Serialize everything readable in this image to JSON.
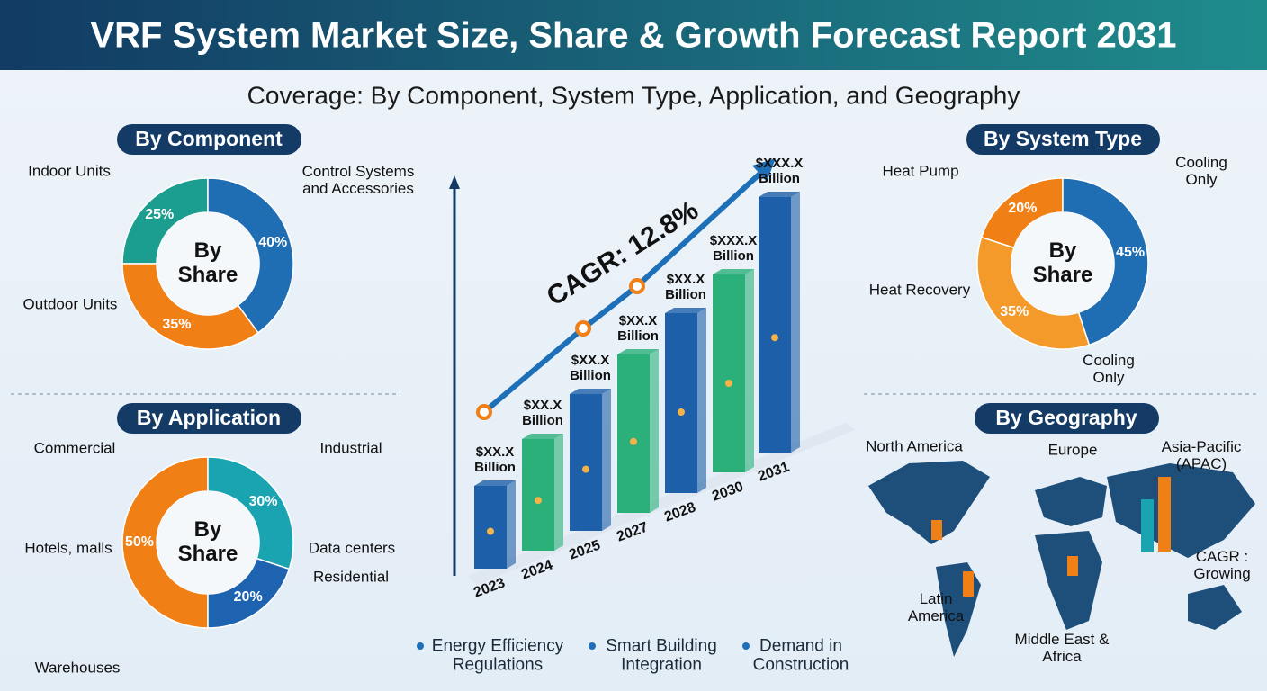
{
  "title": "VRF System Market Size, Share & Growth Forecast Report 2031",
  "subtitle": "Coverage: By Component, System Type, Application, and Geography",
  "chart_data": [
    {
      "type": "pie",
      "title": "By Component",
      "center_label": "By Share",
      "categories": [
        "Indoor Units",
        "Control Systems and Accessories",
        "Outdoor Units"
      ],
      "values": [
        25,
        40,
        35
      ],
      "value_labels": [
        "25%",
        "40%",
        "35%"
      ],
      "colors": [
        "#1b9e8f",
        "#1f6db3",
        "#f07f16"
      ]
    },
    {
      "type": "pie",
      "title": "By System Type",
      "center_label": "By Share",
      "categories": [
        "Heat Pump",
        "Cooling Only",
        "Heat Recovery"
      ],
      "values": [
        20,
        45,
        35
      ],
      "value_labels": [
        "20%",
        "45%",
        "35%"
      ],
      "colors": [
        "#f07f16",
        "#1f6db3",
        "#f39a2a"
      ],
      "annotation": "Cooling Only"
    },
    {
      "type": "pie",
      "title": "By Application",
      "center_label": "By Share",
      "categories": [
        "Commercial",
        "Industrial",
        "Residential"
      ],
      "values": [
        50,
        30,
        20
      ],
      "value_labels": [
        "50%",
        "30%",
        "20%"
      ],
      "colors": [
        "#f07f16",
        "#1aa3b0",
        "#1e63b0"
      ],
      "annotations": [
        "Hotels, malls",
        "Data centers",
        "Warehouses"
      ]
    },
    {
      "type": "bar",
      "categories": [
        "2023",
        "2024",
        "2025",
        "2027",
        "2028",
        "2030",
        "2031"
      ],
      "values": [
        11.5,
        15.5,
        19,
        22,
        25,
        27.5,
        35.5
      ],
      "value_labels": [
        "$XX.X Billion",
        "$XX.X Billion",
        "$XX.X Billion",
        "$XX.X Billion",
        "$XX.X Billion",
        "$XXX.X Billion",
        "$XXX.X Billion"
      ],
      "colors": [
        "#1d5fa8",
        "#2bb07a",
        "#1d5fa8",
        "#2bb07a",
        "#1d5fa8",
        "#2bb07a",
        "#1d5fa8"
      ],
      "annotation": "CAGR: 12.8%"
    }
  ],
  "geography": {
    "title": "By Geography",
    "regions": [
      "North America",
      "Europe",
      "Asia-Pacific (APAC)",
      "Latin America",
      "Middle East & Africa"
    ],
    "note": "CAGR : Growing"
  },
  "drivers": [
    "Energy Efficiency Regulations",
    "Smart Building Integration",
    "Demand in Construction"
  ]
}
